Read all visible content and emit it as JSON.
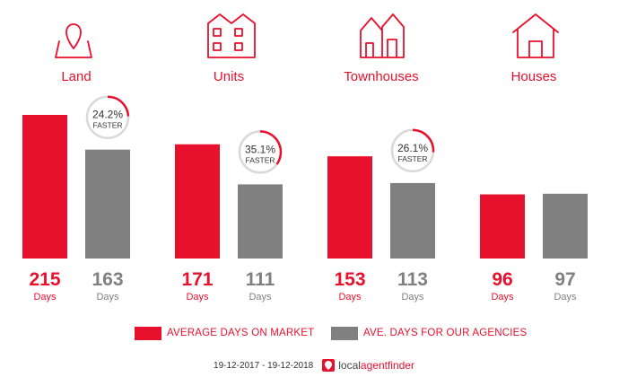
{
  "colors": {
    "accent": "#e8112d",
    "secondary": "#808080",
    "ring_track": "#d9d9d9"
  },
  "chart_data": {
    "type": "bar",
    "categories": [
      "Land",
      "Units",
      "Townhouses",
      "Houses"
    ],
    "category_icons": [
      "map-pin-icon",
      "units-icon",
      "townhouses-icon",
      "house-icon"
    ],
    "series": [
      {
        "name": "AVERAGE DAYS ON MARKET",
        "color": "#e8112d",
        "values": [
          215,
          171,
          153,
          96
        ]
      },
      {
        "name": "AVE. DAYS FOR OUR AGENCIES",
        "color": "#808080",
        "values": [
          163,
          111,
          113,
          97
        ]
      }
    ],
    "value_unit_label": "Days",
    "badges": [
      {
        "category": "Land",
        "percent": 24.2,
        "label": "24.2%",
        "text": "FASTER"
      },
      {
        "category": "Units",
        "percent": 35.1,
        "label": "35.1%",
        "text": "FASTER"
      },
      {
        "category": "Townhouses",
        "percent": 26.1,
        "label": "26.1%",
        "text": "FASTER"
      }
    ],
    "legend_position": "bottom",
    "grid": false
  },
  "footer": {
    "date_range": "19-12-2017 - 19-12-2018",
    "brand_prefix": "local",
    "brand_suffix": "agentfinder"
  }
}
